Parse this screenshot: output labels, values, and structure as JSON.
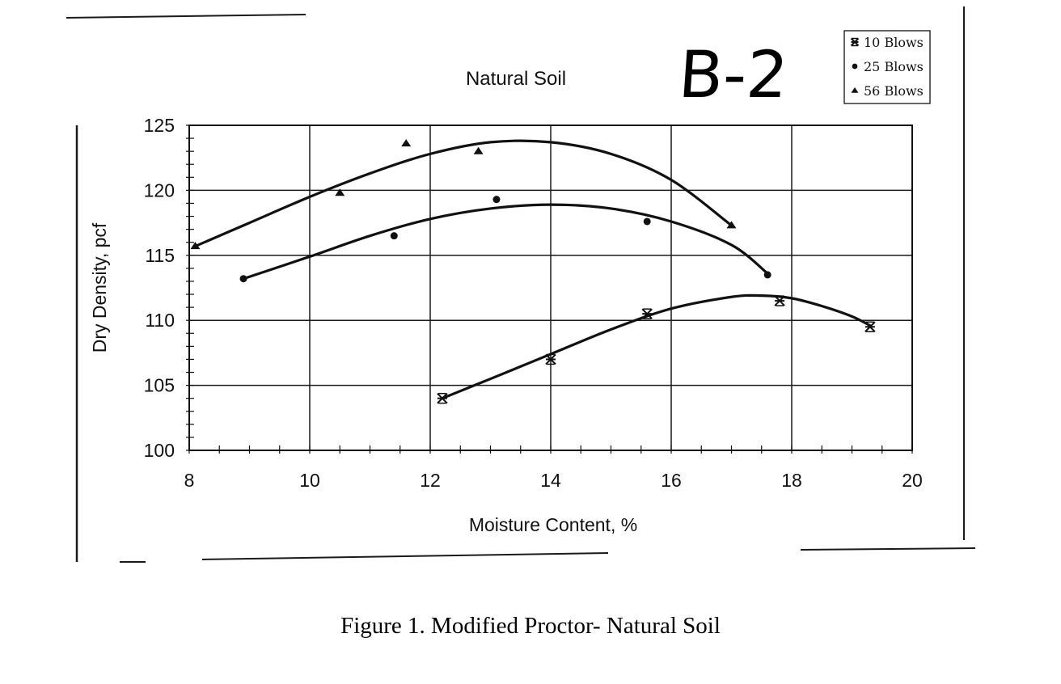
{
  "chart_data": {
    "type": "scatter",
    "title": "Natural Soil",
    "xlabel": "Moisture Content, %",
    "ylabel": "Dry Density, pcf",
    "xlim": [
      8,
      20
    ],
    "ylim": [
      100,
      125
    ],
    "xticks": [
      "8",
      "10",
      "12",
      "14",
      "16",
      "18",
      "20"
    ],
    "yticks": [
      "100",
      "105",
      "110",
      "115",
      "120",
      "125"
    ],
    "grid": true,
    "legend_position": "top-right outside",
    "series": [
      {
        "name": "10 Blows",
        "marker": "asterisk",
        "points": [
          [
            12.2,
            104.0
          ],
          [
            14.0,
            107.0
          ],
          [
            15.6,
            110.5
          ],
          [
            17.8,
            111.5
          ],
          [
            19.3,
            109.5
          ]
        ],
        "fit": [
          [
            12.2,
            104.0
          ],
          [
            13.0,
            105.5
          ],
          [
            14.0,
            107.4
          ],
          [
            15.0,
            109.3
          ],
          [
            16.0,
            110.9
          ],
          [
            17.0,
            111.8
          ],
          [
            17.5,
            111.9
          ],
          [
            18.0,
            111.7
          ],
          [
            18.5,
            111.1
          ],
          [
            19.0,
            110.3
          ],
          [
            19.3,
            109.6
          ]
        ]
      },
      {
        "name": "25 Blows",
        "marker": "circle",
        "points": [
          [
            8.9,
            113.2
          ],
          [
            11.4,
            116.5
          ],
          [
            13.1,
            119.3
          ],
          [
            15.6,
            117.6
          ],
          [
            17.6,
            113.5
          ]
        ],
        "fit": [
          [
            8.9,
            113.2
          ],
          [
            10.0,
            114.9
          ],
          [
            11.0,
            116.5
          ],
          [
            12.0,
            117.8
          ],
          [
            13.0,
            118.6
          ],
          [
            14.0,
            118.9
          ],
          [
            15.0,
            118.6
          ],
          [
            16.0,
            117.6
          ],
          [
            17.0,
            115.8
          ],
          [
            17.6,
            113.6
          ]
        ]
      },
      {
        "name": "56 Blows",
        "marker": "triangle",
        "points": [
          [
            8.1,
            115.7
          ],
          [
            10.5,
            119.8
          ],
          [
            11.6,
            123.6
          ],
          [
            12.8,
            123.0
          ],
          [
            17.0,
            117.3
          ]
        ],
        "fit": [
          [
            8.1,
            115.7
          ],
          [
            9.0,
            117.5
          ],
          [
            10.0,
            119.5
          ],
          [
            11.0,
            121.3
          ],
          [
            12.0,
            122.8
          ],
          [
            13.0,
            123.7
          ],
          [
            14.0,
            123.7
          ],
          [
            15.0,
            122.8
          ],
          [
            16.0,
            120.8
          ],
          [
            17.0,
            117.3
          ]
        ]
      }
    ]
  },
  "legend": {
    "items": [
      {
        "marker": "asterisk",
        "label": "10 Blows"
      },
      {
        "marker": "circle",
        "label": "25 Blows"
      },
      {
        "marker": "triangle",
        "label": "56 Blows"
      }
    ]
  },
  "annotation": {
    "handwritten_label": "B-2"
  },
  "caption": "Figure 1. Modified Proctor- Natural Soil"
}
